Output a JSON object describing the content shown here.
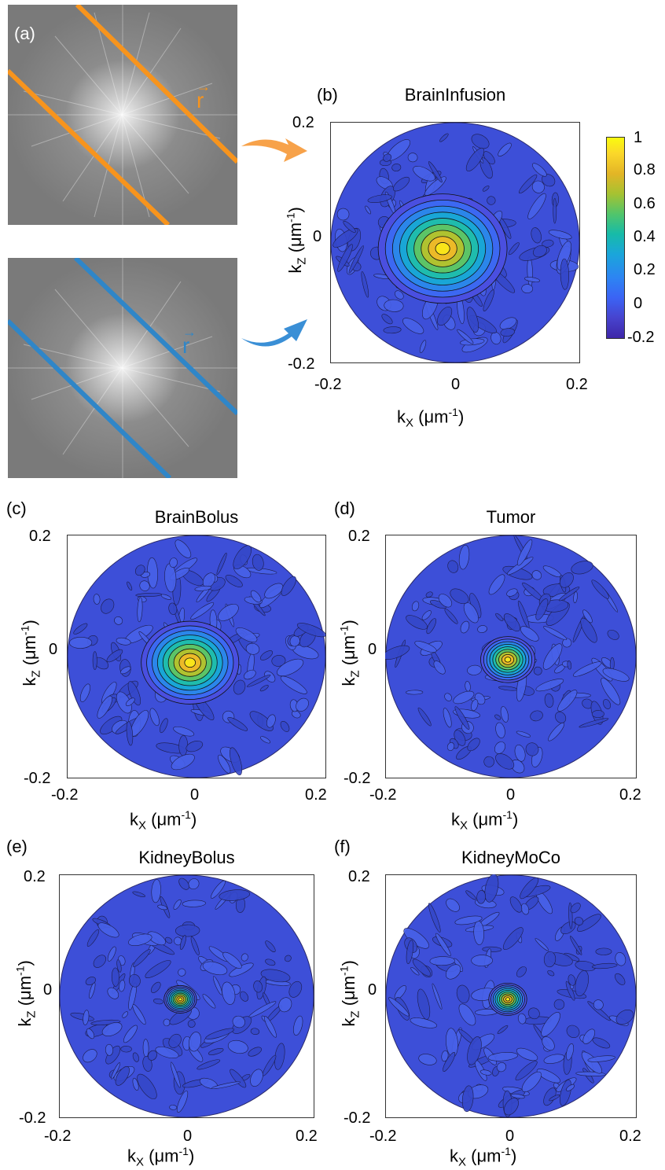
{
  "panels": {
    "a": {
      "label": "(a)",
      "vector_label": "r",
      "colors": {
        "top": "#f7941d",
        "bottom": "#2f86c8"
      }
    },
    "b": {
      "label": "(b)",
      "title": "BrainInfusion"
    },
    "c": {
      "label": "(c)",
      "title": "BrainBolus"
    },
    "d": {
      "label": "(d)",
      "title": "Tumor"
    },
    "e": {
      "label": "(e)",
      "title": "KidneyBolus"
    },
    "f": {
      "label": "(f)",
      "title": "KidneyMoCo"
    }
  },
  "axis": {
    "xlabel_base": "k",
    "xlabel_sub": "X",
    "zlabel_sub": "Z",
    "unit_open": " (",
    "unit": "μm",
    "unit_exp": "-1",
    "unit_close": ")",
    "xticks": [
      "-0.2",
      "0",
      "0.2"
    ],
    "yticks": [
      "0.2",
      "0",
      "-0.2"
    ]
  },
  "colorbar": {
    "ticks": [
      "1",
      "0.8",
      "0.6",
      "0.4",
      "0.2",
      "0",
      "-0.2"
    ]
  },
  "chart_data": [
    {
      "panel": "b",
      "type": "heatmap",
      "title": "BrainInfusion",
      "xlabel": "kX (μm-1)",
      "ylabel": "kZ (μm-1)",
      "xlim": [
        -0.2,
        0.2
      ],
      "ylim": [
        -0.2,
        0.2
      ],
      "clim": [
        -0.2,
        1
      ],
      "peak": {
        "kx": -0.02,
        "kz": -0.01,
        "value": 1
      }
    },
    {
      "panel": "c",
      "type": "heatmap",
      "title": "BrainBolus",
      "xlabel": "kX (μm-1)",
      "ylabel": "kZ (μm-1)",
      "xlim": [
        -0.2,
        0.2
      ],
      "ylim": [
        -0.2,
        0.2
      ],
      "clim": [
        -0.2,
        1
      ],
      "peak": {
        "kx": -0.01,
        "kz": -0.01,
        "value": 1
      }
    },
    {
      "panel": "d",
      "type": "heatmap",
      "title": "Tumor",
      "xlabel": "kX (μm-1)",
      "ylabel": "kZ (μm-1)",
      "xlim": [
        -0.2,
        0.2
      ],
      "ylim": [
        -0.2,
        0.2
      ],
      "clim": [
        -0.2,
        1
      ],
      "peak": {
        "kx": -0.005,
        "kz": -0.005,
        "value": 1
      }
    },
    {
      "panel": "e",
      "type": "heatmap",
      "title": "KidneyBolus",
      "xlabel": "kX (μm-1)",
      "ylabel": "kZ (μm-1)",
      "xlim": [
        -0.2,
        0.2
      ],
      "ylim": [
        -0.2,
        0.2
      ],
      "clim": [
        -0.2,
        1
      ],
      "peak": {
        "kx": -0.01,
        "kz": -0.005,
        "value": 1
      }
    },
    {
      "panel": "f",
      "type": "heatmap",
      "title": "KidneyMoCo",
      "xlabel": "kX (μm-1)",
      "ylabel": "kZ (μm-1)",
      "xlim": [
        -0.2,
        0.2
      ],
      "ylim": [
        -0.2,
        0.2
      ],
      "clim": [
        -0.2,
        1
      ],
      "peak": {
        "kx": -0.005,
        "kz": -0.005,
        "value": 1
      }
    }
  ]
}
